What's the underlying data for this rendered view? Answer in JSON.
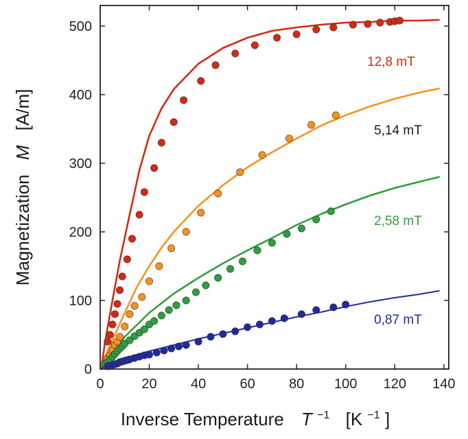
{
  "chart_data": {
    "type": "scatter",
    "xlabel": {
      "main": "Inverse Temperature",
      "symbol": "T",
      "sup": "−1",
      "unit_open": "[K ",
      "unit_sup": "−1",
      "unit_close": "]"
    },
    "ylabel": {
      "main": "Magnetization",
      "symbol": "M",
      "unit": "[A/m]"
    },
    "xlim": [
      0,
      142
    ],
    "ylim": [
      0,
      530
    ],
    "xticks": [
      0,
      20,
      40,
      60,
      80,
      100,
      120,
      140
    ],
    "yticks": [
      0,
      100,
      200,
      300,
      400,
      500
    ],
    "grid": false,
    "series": [
      {
        "name": "12,8 mT",
        "color": "#d42a12",
        "fit": [
          [
            0.5,
            3
          ],
          [
            2,
            40
          ],
          [
            5,
            100
          ],
          [
            8,
            158
          ],
          [
            12,
            225
          ],
          [
            16,
            290
          ],
          [
            20,
            340
          ],
          [
            25,
            380
          ],
          [
            30,
            408
          ],
          [
            40,
            445
          ],
          [
            50,
            468
          ],
          [
            60,
            483
          ],
          [
            70,
            493
          ],
          [
            80,
            498
          ],
          [
            90,
            502
          ],
          [
            100,
            505
          ],
          [
            110,
            506
          ],
          [
            120,
            508
          ],
          [
            130,
            508
          ],
          [
            138,
            509
          ]
        ],
        "points": [
          [
            3,
            40
          ],
          [
            4,
            50
          ],
          [
            5,
            65
          ],
          [
            6,
            80
          ],
          [
            7,
            95
          ],
          [
            8,
            115
          ],
          [
            9,
            135
          ],
          [
            11,
            160
          ],
          [
            13,
            190
          ],
          [
            16,
            225
          ],
          [
            18,
            258
          ],
          [
            22,
            293
          ],
          [
            25,
            330
          ],
          [
            30,
            360
          ],
          [
            34,
            392
          ],
          [
            41,
            420
          ],
          [
            47,
            443
          ],
          [
            55,
            460
          ],
          [
            63,
            472
          ],
          [
            72,
            483
          ],
          [
            80,
            488
          ],
          [
            88,
            495
          ],
          [
            95,
            498
          ],
          [
            103,
            502
          ],
          [
            109,
            503
          ],
          [
            114,
            505
          ],
          [
            118,
            506
          ],
          [
            120,
            507
          ],
          [
            122,
            508
          ]
        ]
      },
      {
        "name": "5,14 mT",
        "color": "#f7921e",
        "fit": [
          [
            0.5,
            3
          ],
          [
            2,
            18
          ],
          [
            5,
            42
          ],
          [
            10,
            82
          ],
          [
            15,
            120
          ],
          [
            20,
            150
          ],
          [
            25,
            177
          ],
          [
            30,
            200
          ],
          [
            40,
            238
          ],
          [
            50,
            268
          ],
          [
            60,
            294
          ],
          [
            70,
            316
          ],
          [
            80,
            336
          ],
          [
            90,
            355
          ],
          [
            100,
            370
          ],
          [
            110,
            383
          ],
          [
            120,
            394
          ],
          [
            130,
            403
          ],
          [
            138,
            409
          ]
        ],
        "points": [
          [
            3,
            15
          ],
          [
            4,
            20
          ],
          [
            5,
            28
          ],
          [
            6,
            35
          ],
          [
            7,
            40
          ],
          [
            8,
            47
          ],
          [
            10,
            62
          ],
          [
            12,
            80
          ],
          [
            14,
            92
          ],
          [
            17,
            105
          ],
          [
            20,
            128
          ],
          [
            24,
            150
          ],
          [
            29,
            176
          ],
          [
            35,
            200
          ],
          [
            41,
            228
          ],
          [
            48,
            256
          ],
          [
            57,
            287
          ],
          [
            66,
            312
          ],
          [
            77,
            336
          ],
          [
            86,
            356
          ],
          [
            96,
            370
          ]
        ]
      },
      {
        "name": "2,58 mT",
        "color": "#2f9e3e",
        "fit": [
          [
            0.5,
            2
          ],
          [
            2,
            10
          ],
          [
            5,
            25
          ],
          [
            10,
            47
          ],
          [
            20,
            82
          ],
          [
            30,
            110
          ],
          [
            40,
            133
          ],
          [
            50,
            154
          ],
          [
            60,
            173
          ],
          [
            70,
            191
          ],
          [
            80,
            210
          ],
          [
            90,
            226
          ],
          [
            100,
            240
          ],
          [
            110,
            253
          ],
          [
            120,
            264
          ],
          [
            130,
            273
          ],
          [
            138,
            280
          ]
        ],
        "points": [
          [
            2,
            8
          ],
          [
            3,
            10
          ],
          [
            4,
            14
          ],
          [
            5,
            18
          ],
          [
            6,
            22
          ],
          [
            7,
            26
          ],
          [
            8,
            30
          ],
          [
            9,
            33
          ],
          [
            10,
            37
          ],
          [
            12,
            42
          ],
          [
            14,
            48
          ],
          [
            16,
            53
          ],
          [
            18,
            58
          ],
          [
            20,
            65
          ],
          [
            22,
            70
          ],
          [
            25,
            78
          ],
          [
            28,
            86
          ],
          [
            31,
            93
          ],
          [
            35,
            100
          ],
          [
            39,
            112
          ],
          [
            43,
            122
          ],
          [
            48,
            133
          ],
          [
            53,
            146
          ],
          [
            58,
            157
          ],
          [
            64,
            173
          ],
          [
            70,
            184
          ],
          [
            76,
            197
          ],
          [
            82,
            205
          ],
          [
            88,
            218
          ],
          [
            94,
            230
          ]
        ]
      },
      {
        "name": "0,87 mT",
        "color": "#1f2a9e",
        "fit": [
          [
            0.5,
            1
          ],
          [
            2,
            4
          ],
          [
            5,
            9
          ],
          [
            10,
            16
          ],
          [
            20,
            26
          ],
          [
            30,
            35
          ],
          [
            40,
            44
          ],
          [
            50,
            52
          ],
          [
            60,
            60
          ],
          [
            70,
            68
          ],
          [
            80,
            76
          ],
          [
            90,
            83
          ],
          [
            100,
            91
          ],
          [
            110,
            98
          ],
          [
            120,
            104
          ],
          [
            130,
            109
          ],
          [
            138,
            114
          ]
        ],
        "points": [
          [
            3,
            4
          ],
          [
            4,
            5
          ],
          [
            5,
            6
          ],
          [
            6,
            7
          ],
          [
            7,
            8
          ],
          [
            8,
            10
          ],
          [
            9,
            11
          ],
          [
            10,
            12
          ],
          [
            11,
            13
          ],
          [
            12,
            14
          ],
          [
            14,
            16
          ],
          [
            16,
            18
          ],
          [
            18,
            20
          ],
          [
            20,
            21
          ],
          [
            23,
            24
          ],
          [
            26,
            27
          ],
          [
            29,
            30
          ],
          [
            32,
            33
          ],
          [
            35,
            35
          ],
          [
            40,
            40
          ],
          [
            45,
            47
          ],
          [
            50,
            51
          ],
          [
            55,
            55
          ],
          [
            60,
            61
          ],
          [
            65,
            65
          ],
          [
            70,
            70
          ],
          [
            75,
            74
          ],
          [
            82,
            80
          ],
          [
            88,
            86
          ],
          [
            95,
            90
          ],
          [
            100,
            94
          ]
        ]
      }
    ]
  }
}
